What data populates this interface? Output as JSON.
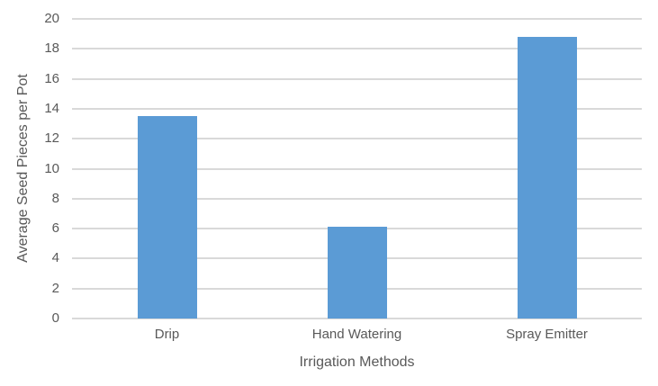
{
  "chart_data": {
    "type": "bar",
    "categories": [
      "Drip",
      "Hand Watering",
      "Spray Emitter"
    ],
    "values": [
      13.5,
      6.1,
      18.8
    ],
    "title": "",
    "xlabel": "Irrigation Methods",
    "ylabel": "Average Seed Pieces per Pot",
    "ylim": [
      0,
      20
    ],
    "ytick_step": 2,
    "ytick_labels": [
      "0",
      "2",
      "4",
      "6",
      "8",
      "10",
      "12",
      "14",
      "16",
      "18",
      "20"
    ],
    "grid": true,
    "legend_visible": false,
    "colors": {
      "bar": "#5b9bd5",
      "gridline": "#d9d9d9",
      "axis_text": "#595959",
      "background": "#ffffff"
    }
  }
}
